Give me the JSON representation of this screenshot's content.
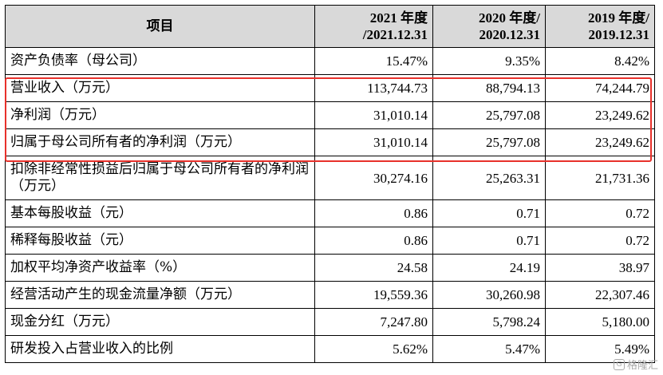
{
  "header": {
    "item": "项目",
    "col1": "2021 年度/2021.12.31",
    "col1_line1": "2021 年度",
    "col1_line2": "/2021.12.31",
    "col2_line1": "2020 年度/",
    "col2_line2": "2020.12.31",
    "col3_line1": "2019 年度/",
    "col3_line2": "2019.12.31"
  },
  "rows": [
    {
      "label": "资产负债率（母公司）",
      "v2021": "15.47%",
      "v2020": "9.35%",
      "v2019": "8.42%"
    },
    {
      "label": "营业收入（万元）",
      "v2021": "113,744.73",
      "v2020": "88,794.13",
      "v2019": "74,244.79"
    },
    {
      "label": "净利润（万元）",
      "v2021": "31,010.14",
      "v2020": "25,797.08",
      "v2019": "23,249.62"
    },
    {
      "label": "归属于母公司所有者的净利润（万元）",
      "v2021": "31,010.14",
      "v2020": "25,797.08",
      "v2019": "23,249.62"
    },
    {
      "label": "扣除非经常性损益后归属于母公司所有者的净利润（万元）",
      "v2021": "30,274.16",
      "v2020": "25,263.31",
      "v2019": "21,731.36"
    },
    {
      "label": "基本每股收益（元）",
      "v2021": "0.86",
      "v2020": "0.71",
      "v2019": "0.72"
    },
    {
      "label": "稀释每股收益（元）",
      "v2021": "0.86",
      "v2020": "0.71",
      "v2019": "0.72"
    },
    {
      "label": "加权平均净资产收益率（%）",
      "v2021": "24.58",
      "v2020": "24.19",
      "v2019": "38.97"
    },
    {
      "label": "经营活动产生的现金流量净额（万元）",
      "v2021": "19,559.36",
      "v2020": "30,260.98",
      "v2019": "22,307.46"
    },
    {
      "label": "现金分红（万元）",
      "v2021": "7,247.80",
      "v2020": "5,798.24",
      "v2019": "5,180.00"
    },
    {
      "label": "研发投入占营业收入的比例",
      "v2021": "5.62%",
      "v2020": "5.47%",
      "v2019": "5.49%"
    }
  ],
  "highlight_color": "#e8312b",
  "watermark": "格隆汇"
}
